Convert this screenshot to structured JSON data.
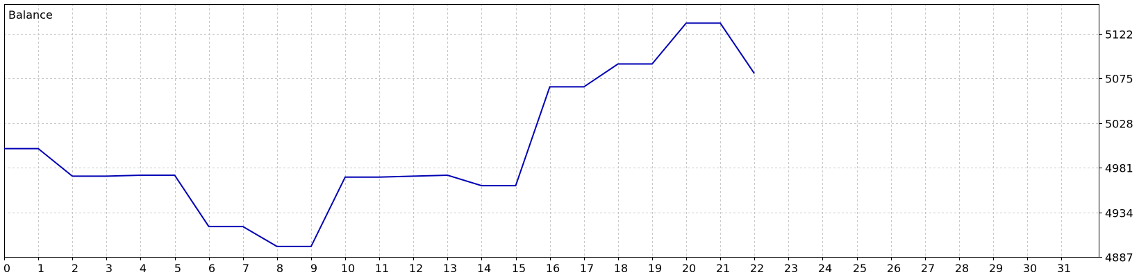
{
  "chart_data": {
    "type": "line",
    "title": "Balance",
    "xlabel": "",
    "ylabel": "",
    "x": [
      0,
      1,
      2,
      3,
      4,
      5,
      6,
      7,
      8,
      9,
      10,
      11,
      12,
      13,
      14,
      15,
      16,
      17,
      18,
      19,
      20,
      21,
      22
    ],
    "series": [
      {
        "values": [
          5001,
          5001,
          4972,
          4972,
          4973,
          4973,
          4919,
          4919,
          4898,
          4898,
          4971,
          4971,
          4972,
          4973,
          4962,
          4962,
          5066,
          5066,
          5090,
          5090,
          5133,
          5133,
          5080
        ],
        "color": "#0000b4"
      }
    ],
    "x_ticks": [
      "0",
      "1",
      "2",
      "3",
      "4",
      "5",
      "6",
      "7",
      "8",
      "9",
      "10",
      "11",
      "12",
      "13",
      "14",
      "15",
      "16",
      "17",
      "18",
      "19",
      "20",
      "21",
      "22",
      "23",
      "24",
      "25",
      "26",
      "27",
      "28",
      "29",
      "30",
      "31"
    ],
    "y_ticks": [
      "4887",
      "4934",
      "4981",
      "5028",
      "5075",
      "5122"
    ],
    "xlim": [
      0,
      32
    ],
    "ylim": [
      4887,
      5153
    ],
    "grid": true,
    "y_axis_side": "right",
    "colors": {
      "line": "#0000b4",
      "grid": "#c8c8c8",
      "frame": "#000000",
      "background": "#ffffff"
    }
  }
}
